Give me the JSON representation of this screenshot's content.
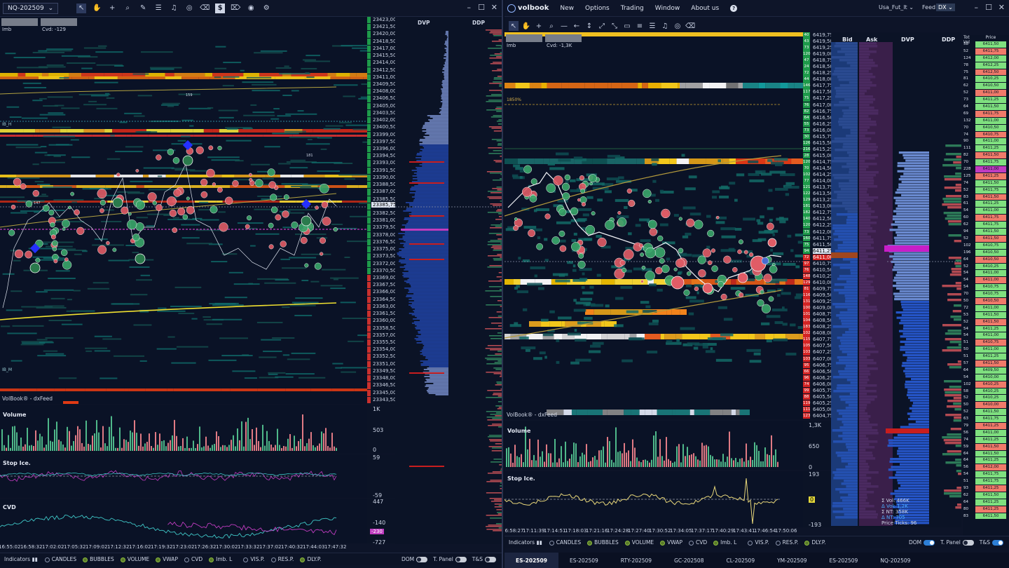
{
  "left": {
    "symbol": "NQ-202509",
    "imb_label": "Imb",
    "cvd_label": "Cvd: -129",
    "watermark": "VolBook® - dxFeed",
    "ib_h": "IB_H",
    "ib_m": "IB_M",
    "dvp_label": "DVP",
    "ddp_label": "DDP",
    "prices": [
      "23423,00",
      "23421,50",
      "23420,00",
      "23418,50",
      "23417,00",
      "23415,50",
      "23414,00",
      "23412,50",
      "23411,00",
      "23409,50",
      "23408,00",
      "23406,50",
      "23405,00",
      "23403,50",
      "23402,00",
      "23400,50",
      "23399,00",
      "23397,50",
      "23396,00",
      "23394,50",
      "23393,00",
      "23391,50",
      "23390,00",
      "23388,50",
      "23387,00",
      "23385,50",
      "23384,00",
      "23382,50",
      "23381,00",
      "23379,50",
      "23378,00",
      "23376,50",
      "23375,00",
      "23373,50",
      "23372,00",
      "23370,50",
      "23369,00",
      "23367,50",
      "23366,00",
      "23364,50",
      "23363,00",
      "23361,50",
      "23360,00",
      "23358,50",
      "23357,00",
      "23355,50",
      "23354,00",
      "23352,50",
      "23351,00",
      "23349,50",
      "23348,00",
      "23346,50",
      "23345,00",
      "23343,50"
    ],
    "current_price": "23385,75",
    "volume_label": "Volume",
    "volume_axis": [
      "1K",
      "503",
      "0"
    ],
    "stopice_label": "Stop Ice.",
    "stopice_axis": [
      "59",
      "-59"
    ],
    "cvd_panel_label": "CVD",
    "cvd_axis": [
      "447",
      "-140",
      "-727"
    ],
    "cvd_badge": "-230",
    "marker_labels": [
      "159",
      "181",
      "147"
    ],
    "times": [
      "16:55:02",
      "16:58:32",
      "17:02:02",
      "17:05:32",
      "17:09:02",
      "17:12:32",
      "17:16:02",
      "17:19:32",
      "17:23:02",
      "17:26:32",
      "17:30:02",
      "17:33:32",
      "17:37:02",
      "17:40:32",
      "17:44:03",
      "17:47:32"
    ],
    "bottom": {
      "indicators": "Indicators",
      "options": [
        "CANDLES",
        "BUBBLES",
        "VOLUME",
        "VWAP",
        "CVD",
        "Imb. L"
      ],
      "options_on": [
        false,
        true,
        true,
        true,
        false,
        true
      ],
      "right_opts": [
        "VIS.P.",
        "RES.P.",
        "DLY.P."
      ],
      "right_on": [
        false,
        false,
        true
      ],
      "dom": "DOM",
      "tpanel": "T. Panel",
      "ts": "T&S"
    }
  },
  "right": {
    "app_name": "volbook",
    "menu": [
      "New",
      "Options",
      "Trading",
      "Window",
      "About us"
    ],
    "account": "Usa_Fut_lt",
    "feed_label": "Feed",
    "feed_value": "DX",
    "imb_label": "Imb",
    "cvd_label": "Cvd: -1,3K",
    "pct_label": "1850%",
    "watermark": "VolBook® - dxFeed",
    "headers": {
      "bid": "Bid",
      "ask": "Ask",
      "dvp": "DVP",
      "ddp": "DDP",
      "totvol": "Tot Vol",
      "price": "Price"
    },
    "prices": [
      "6419,75",
      "6419,50",
      "6419,25",
      "6419,00",
      "6418,75",
      "6418,50",
      "6418,25",
      "6418,00",
      "6417,75",
      "6417,50",
      "6417,25",
      "6417,00",
      "6416,75",
      "6416,50",
      "6416,25",
      "6416,00",
      "6415,75",
      "6415,50",
      "6415,25",
      "6415,00",
      "6414,75",
      "6414,50",
      "6414,25",
      "6414,00",
      "6413,75",
      "6413,50",
      "6413,25",
      "6413,00",
      "6412,75",
      "6412,50",
      "6412,25",
      "6412,00",
      "6411,75",
      "6411,50",
      "6411,25",
      "6411,00",
      "6410,75",
      "6410,50",
      "6410,25",
      "6410,00",
      "6409,75",
      "6409,50",
      "6409,25",
      "6409,00",
      "6408,75",
      "6408,50",
      "6408,25",
      "6408,00",
      "6407,75",
      "6407,50",
      "6407,25",
      "6407,00",
      "6406,75",
      "6406,50",
      "6406,25",
      "6406,00",
      "6405,75",
      "6405,50",
      "6405,25",
      "6405,00",
      "6404,75"
    ],
    "vol_ticks": [
      "40",
      "43",
      "73",
      "120",
      "47",
      "24",
      "72",
      "44",
      "146",
      "117",
      "75",
      "76",
      "82",
      "64",
      "55",
      "73",
      "30",
      "126",
      "216",
      "28",
      "120",
      "70",
      "102",
      "77",
      "121",
      "122",
      "129",
      "181",
      "182",
      "140",
      "120",
      "73",
      "160",
      "75",
      "94",
      "72",
      "97",
      "76",
      "148",
      "129",
      "81",
      "116",
      "131",
      "100",
      "101",
      "104",
      "183",
      "102",
      "115",
      "105",
      "103",
      "103",
      "95",
      "66",
      "96",
      "74",
      "99",
      "88",
      "119",
      "111",
      "123"
    ],
    "volume_label": "Volume",
    "volume_axis": [
      "1,3K",
      "650",
      "0"
    ],
    "stopice_label": "Stop Ice.",
    "stopice_axis": [
      "193",
      "0",
      "-193"
    ],
    "times": [
      "16:58:27",
      "17:11:39",
      "17:14:51",
      "17:18:03",
      "17:21:16",
      "17:24:28",
      "17:27:40",
      "17:30:52",
      "17:34:05",
      "17:37:17",
      "17:40:29",
      "17:43:41",
      "17:46:54",
      "17:50:06"
    ],
    "stats": [
      "Σ Vol: 466K",
      "Δ Vol: 1,2K",
      "Σ NT: 358K",
      "Δ NT: 705",
      "Price Ticks: 96"
    ],
    "ladder": [
      [
        "58",
        "6411,50"
      ],
      [
        "52",
        "6411,75"
      ],
      [
        "124",
        "6412,00"
      ],
      [
        "78",
        "6412,25"
      ],
      [
        "75",
        "6412,50"
      ],
      [
        "81",
        "6410,25"
      ],
      [
        "62",
        "6410,50"
      ],
      [
        "52",
        "6411,00"
      ],
      [
        "73",
        "6411,25"
      ],
      [
        "64",
        "6411,50"
      ],
      [
        "69",
        "6411,75"
      ],
      [
        "132",
        "6411,00"
      ],
      [
        "70",
        "6410,50"
      ],
      [
        "74",
        "6410,75"
      ],
      [
        "90",
        "6411,00"
      ],
      [
        "111",
        "6411,25"
      ],
      [
        "82",
        "6411,50"
      ],
      [
        "70",
        "6411,75"
      ],
      [
        "228",
        "6411,00"
      ],
      [
        "125",
        "6411,25"
      ],
      [
        "74",
        "6411,50"
      ],
      [
        "52",
        "6411,75"
      ],
      [
        "83",
        "6411,50"
      ],
      [
        "61",
        "6411,25"
      ],
      [
        "54",
        "6411,00"
      ],
      [
        "60",
        "6411,75"
      ],
      [
        "62",
        "6411,75"
      ],
      [
        "94",
        "6411,50"
      ],
      [
        "52",
        "6411,50"
      ],
      [
        "102",
        "6410,75"
      ],
      [
        "196",
        "6410,50"
      ],
      [
        "64",
        "6410,50"
      ],
      [
        "52",
        "6410,25"
      ],
      [
        "54",
        "6411,00"
      ],
      [
        "54",
        "6411,00"
      ],
      [
        "54",
        "6410,75"
      ],
      [
        "70",
        "6410,75"
      ],
      [
        "50",
        "6410,50"
      ],
      [
        "72",
        "6411,00"
      ],
      [
        "53",
        "6411,50"
      ],
      [
        "52",
        "6411,50"
      ],
      [
        "54",
        "6411,25"
      ],
      [
        "54",
        "6411,00"
      ],
      [
        "51",
        "6410,75"
      ],
      [
        "50",
        "6411,00"
      ],
      [
        "51",
        "6411,25"
      ],
      [
        "57",
        "6411,50"
      ],
      [
        "64",
        "6409,50"
      ],
      [
        "54",
        "6410,00"
      ],
      [
        "102",
        "6410,25"
      ],
      [
        "58",
        "6410,25"
      ],
      [
        "52",
        "6410,25"
      ],
      [
        "50",
        "6410,00"
      ],
      [
        "52",
        "6411,50"
      ],
      [
        "63",
        "6411,75"
      ],
      [
        "79",
        "6411,25"
      ],
      [
        "56",
        "6411,00"
      ],
      [
        "74",
        "6411,25"
      ],
      [
        "59",
        "6411,50"
      ],
      [
        "64",
        "6411,50"
      ],
      [
        "64",
        "6411,25"
      ],
      [
        "56",
        "6412,00"
      ],
      [
        "54",
        "6411,75"
      ],
      [
        "51",
        "6411,75"
      ],
      [
        "93",
        "6411,25"
      ],
      [
        "62",
        "6411,50"
      ],
      [
        "64",
        "6411,25"
      ],
      [
        "80",
        "6411,25"
      ],
      [
        "83",
        "6411,50"
      ]
    ],
    "bottom": {
      "indicators": "Indicators",
      "options": [
        "CANDLES",
        "BUBBLES",
        "VOLUME",
        "VWAP",
        "CVD",
        "Imb. L"
      ],
      "options_on": [
        false,
        true,
        true,
        true,
        false,
        true
      ],
      "right_opts": [
        "VIS.P.",
        "RES.P.",
        "DLY.P."
      ],
      "right_on": [
        false,
        false,
        true
      ],
      "dom": "DOM",
      "tpanel": "T. Panel",
      "ts": "T&S"
    }
  },
  "tabs": [
    "ES-202509",
    "ES-202509",
    "RTY-202509",
    "GC-202508",
    "CL-202509",
    "YM-202509",
    "ES-202509",
    "NQ-202509"
  ],
  "active_tab": 0
}
